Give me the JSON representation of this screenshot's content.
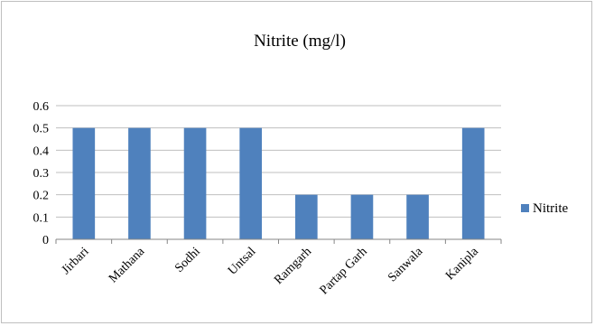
{
  "chart_data": {
    "type": "bar",
    "title": "Nitrite (mg/l)",
    "xlabel": "",
    "ylabel": "",
    "categories": [
      "Jirbari",
      "Mathana",
      "Sodhi",
      "Untsal",
      "Ramgarh",
      "Partap Garh",
      "Sanwala",
      "Kanipla"
    ],
    "series": [
      {
        "name": "Nitrite",
        "color": "#4f81bd",
        "values": [
          0.5,
          0.5,
          0.5,
          0.5,
          0.2,
          0.2,
          0.2,
          0.5
        ]
      }
    ],
    "ylim": [
      0,
      0.6
    ],
    "yticks": [
      "0",
      "0.1",
      "0.2",
      "0.3",
      "0.4",
      "0.5",
      "0.6"
    ],
    "grid": true,
    "legend_position": "right"
  }
}
